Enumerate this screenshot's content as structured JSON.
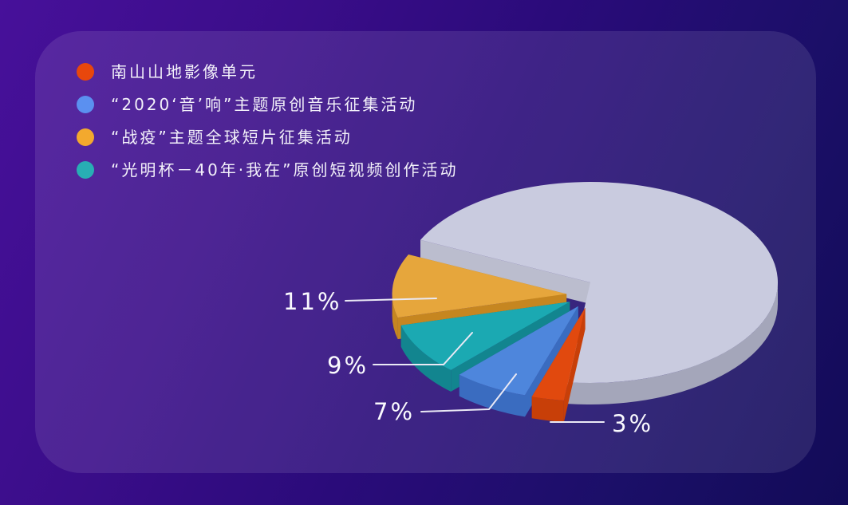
{
  "chart_data": {
    "type": "pie",
    "style": "3d-exploded",
    "title": "",
    "unit": "%",
    "legend_position": "top-left",
    "segments": [
      {
        "label": "南山山地影像单元",
        "value": 3,
        "pct_label": "3%",
        "color": "#E1490E",
        "side": "#C83F08",
        "dark": "#9E3104"
      },
      {
        "label": "“2020‘音’响”主题原创音乐征集活动",
        "value": 7,
        "pct_label": "7%",
        "color": "#4E86DC",
        "side": "#3A6CC0",
        "dark": "#2E569E"
      },
      {
        "label": "“光明杯－40年·我在”原创短视频创作活动",
        "value": 9,
        "pct_label": "9%",
        "color": "#1BA9B2",
        "side": "#12858F",
        "dark": "#0C6A74"
      },
      {
        "label": "“战疫”主题全球短片征集活动",
        "value": 11,
        "pct_label": "11%",
        "color": "#E6A63C",
        "side": "#C68620",
        "dark": "#A06C14"
      },
      {
        "label": "",
        "value": 70,
        "pct_label": "",
        "color": "#C9CBDF",
        "side": "#A4A6BA",
        "dark": "#BBBDCE",
        "wall": "#C4C6D6"
      }
    ]
  },
  "legend": {
    "items": [
      {
        "label": "南山山地影像单元",
        "dot_color": "#E8470C",
        "dot_style": "background:#E8470C"
      },
      {
        "label": "“2020‘音’响”主题原创音乐征集活动",
        "dot_color": "#5B90F0",
        "dot_style": "background:#5B90F0"
      },
      {
        "label": "“战疫”主题全球短片征集活动",
        "dot_color": "#F3A92E",
        "dot_style": "background:#F3A92E"
      },
      {
        "label": "“光明杯－40年·我在”原创短视频创作活动",
        "dot_color": "#28AEB4",
        "dot_style": "background:#28AEB4"
      }
    ]
  },
  "colors": {
    "background_gradient_start": "#47109A",
    "background_gradient_end": "#120B57",
    "card_overlay": "rgba(255,255,255,0.10)",
    "label_text": "#FAFAFE",
    "leader_line": "#EAE9F5"
  }
}
